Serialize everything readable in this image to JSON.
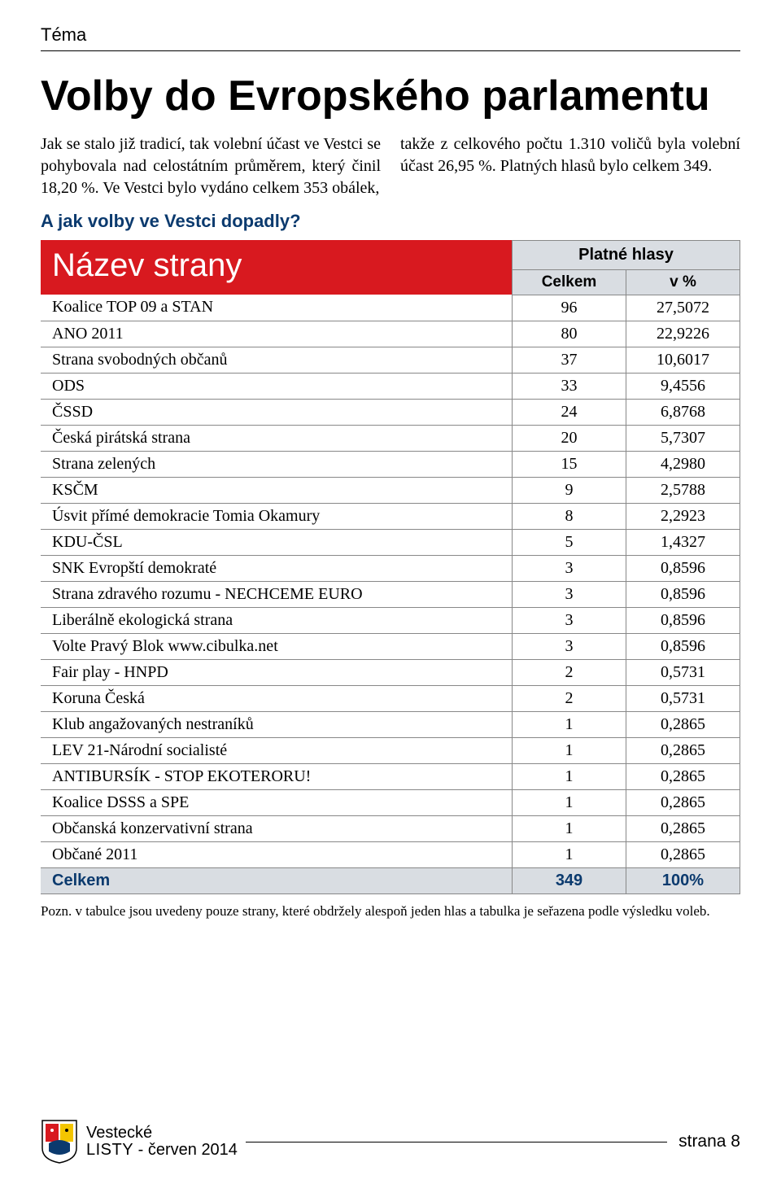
{
  "section_label": "Téma",
  "headline": "Volby do Evropského parlamentu",
  "intro_left": "Jak se stalo již tradicí, tak volební účast ve Vestci se pohybovala nad celostátním průměrem, který činil 18,20 %. Ve Vestci bylo vydáno celkem 353 obálek,",
  "intro_right": "takže z celkového počtu 1.310 voličů byla volební účast 26,95 %. Platných hlasů bylo celkem 349.",
  "subhead": "A jak volby ve Vestci dopadly?",
  "table": {
    "header_name": "Název strany",
    "header_votes_group": "Platné hlasy",
    "header_total": "Celkem",
    "header_pct": "v %",
    "rows": [
      {
        "name": "Koalice TOP 09 a STAN",
        "votes": "96",
        "pct": "27,5072"
      },
      {
        "name": "ANO 2011",
        "votes": "80",
        "pct": "22,9226"
      },
      {
        "name": "Strana svobodných občanů",
        "votes": "37",
        "pct": "10,6017"
      },
      {
        "name": "ODS",
        "votes": "33",
        "pct": "9,4556"
      },
      {
        "name": "ČSSD",
        "votes": "24",
        "pct": "6,8768"
      },
      {
        "name": "Česká pirátská strana",
        "votes": "20",
        "pct": "5,7307"
      },
      {
        "name": "Strana zelených",
        "votes": "15",
        "pct": "4,2980"
      },
      {
        "name": "KSČM",
        "votes": "9",
        "pct": "2,5788"
      },
      {
        "name": "Úsvit přímé demokracie Tomia Okamury",
        "votes": "8",
        "pct": "2,2923"
      },
      {
        "name": "KDU-ČSL",
        "votes": "5",
        "pct": "1,4327"
      },
      {
        "name": "SNK Evropští demokraté",
        "votes": "3",
        "pct": "0,8596"
      },
      {
        "name": "Strana zdravého rozumu - NECHCEME EURO",
        "votes": "3",
        "pct": "0,8596"
      },
      {
        "name": "Liberálně ekologická strana",
        "votes": "3",
        "pct": "0,8596"
      },
      {
        "name": "Volte Pravý Blok www.cibulka.net",
        "votes": "3",
        "pct": "0,8596"
      },
      {
        "name": "Fair play - HNPD",
        "votes": "2",
        "pct": "0,5731"
      },
      {
        "name": "Koruna Česká",
        "votes": "2",
        "pct": "0,5731"
      },
      {
        "name": "Klub angažovaných nestraníků",
        "votes": "1",
        "pct": "0,2865"
      },
      {
        "name": "LEV 21-Národní socialisté",
        "votes": "1",
        "pct": "0,2865"
      },
      {
        "name": "ANTIBURSÍK - STOP EKOTERORU!",
        "votes": "1",
        "pct": "0,2865"
      },
      {
        "name": "Koalice DSSS a SPE",
        "votes": "1",
        "pct": "0,2865"
      },
      {
        "name": "Občanská konzervativní strana",
        "votes": "1",
        "pct": "0,2865"
      },
      {
        "name": "Občané 2011",
        "votes": "1",
        "pct": "0,2865"
      }
    ],
    "total": {
      "name": "Celkem",
      "votes": "349",
      "pct": "100%"
    }
  },
  "footnote": "Pozn. v tabulce jsou uvedeny pouze strany, které obdržely alespoň jeden hlas a tabulka je seřazena podle výsledku voleb.",
  "pub_line1": "Vestecké",
  "pub_line2": "LISTY",
  "pub_date": " - červen 2014",
  "page_label": "strana 8",
  "colors": {
    "header_red": "#d8191f",
    "header_gray": "#d9dde2",
    "accent_blue": "#0b3a6e"
  }
}
